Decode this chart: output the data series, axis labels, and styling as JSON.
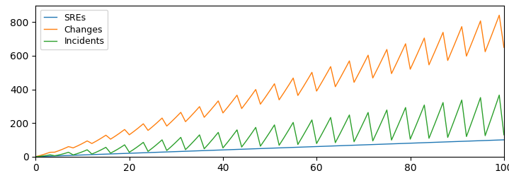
{
  "title": "",
  "xlabel": "",
  "ylabel": "",
  "xlim": [
    0,
    100
  ],
  "ylim": [
    0,
    900
  ],
  "x_ticks": [
    0,
    20,
    40,
    60,
    80,
    100
  ],
  "y_ticks": [
    0,
    200,
    400,
    600,
    800
  ],
  "legend_labels": [
    "SREs",
    "Changes",
    "Incidents"
  ],
  "line_colors": [
    "#1f77b4",
    "#ff7f0e",
    "#2ca02c"
  ],
  "sres_slope": 1.0,
  "changes_peak_slope": 8.5,
  "changes_trough_slope": 6.5,
  "incidents_peak_slope": 3.7,
  "incidents_trough_slope": 1.3,
  "n_points": 2001,
  "sawtooth_period": 4.0,
  "figsize": [
    7.19,
    2.52
  ],
  "dpi": 100
}
